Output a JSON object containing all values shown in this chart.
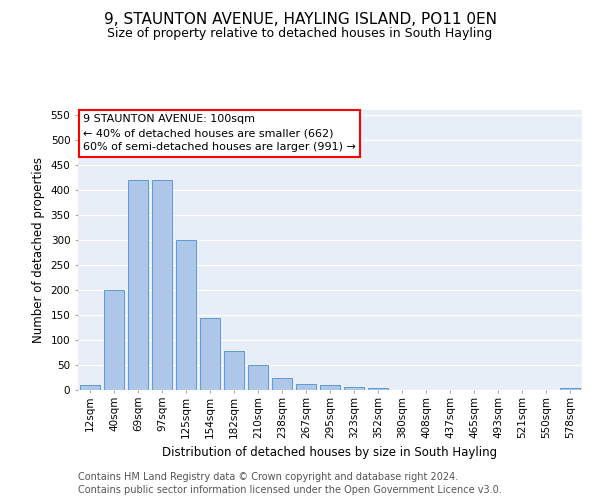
{
  "title": "9, STAUNTON AVENUE, HAYLING ISLAND, PO11 0EN",
  "subtitle": "Size of property relative to detached houses in South Hayling",
  "xlabel": "Distribution of detached houses by size in South Hayling",
  "ylabel": "Number of detached properties",
  "footer_line1": "Contains HM Land Registry data © Crown copyright and database right 2024.",
  "footer_line2": "Contains public sector information licensed under the Open Government Licence v3.0.",
  "annotation_line1": "9 STAUNTON AVENUE: 100sqm",
  "annotation_line2": "← 40% of detached houses are smaller (662)",
  "annotation_line3": "60% of semi-detached houses are larger (991) →",
  "categories": [
    "12sqm",
    "40sqm",
    "69sqm",
    "97sqm",
    "125sqm",
    "154sqm",
    "182sqm",
    "210sqm",
    "238sqm",
    "267sqm",
    "295sqm",
    "323sqm",
    "352sqm",
    "380sqm",
    "408sqm",
    "437sqm",
    "465sqm",
    "493sqm",
    "521sqm",
    "550sqm",
    "578sqm"
  ],
  "values": [
    10,
    200,
    420,
    420,
    300,
    145,
    78,
    50,
    25,
    13,
    10,
    7,
    5,
    0,
    0,
    0,
    0,
    0,
    0,
    0,
    4
  ],
  "bar_color": "#aec6e8",
  "bar_edge_color": "#5b9bd5",
  "background_color": "#ffffff",
  "plot_bg_color": "#e8eef7",
  "grid_color": "#ffffff",
  "ylim": [
    0,
    560
  ],
  "yticks": [
    0,
    50,
    100,
    150,
    200,
    250,
    300,
    350,
    400,
    450,
    500,
    550
  ],
  "title_fontsize": 11,
  "subtitle_fontsize": 9,
  "axis_label_fontsize": 8.5,
  "tick_fontsize": 7.5,
  "annotation_fontsize": 8,
  "footer_fontsize": 7
}
